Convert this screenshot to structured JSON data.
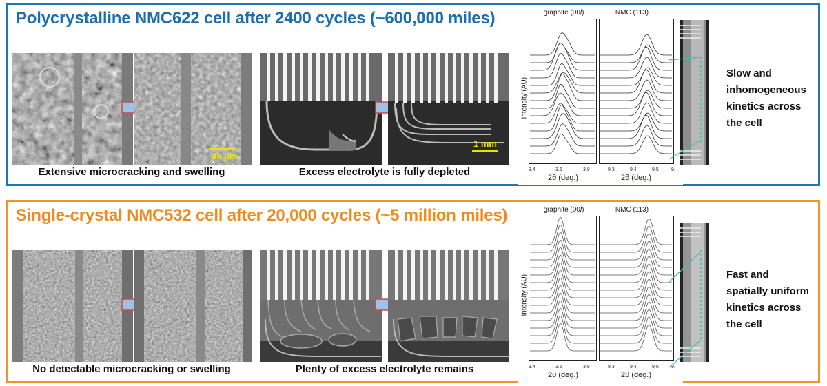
{
  "top": {
    "title": "Polycrystalline NMC622 cell after 2400 cycles (~600,000 miles)",
    "caption_micro": "Extensive microcracking and swelling",
    "caption_electrolyte": "Excess electrolyte is fully depleted",
    "scalebar_micro": "40 μm",
    "scalebar_mm": "1 mm",
    "note": [
      "Slow and",
      "inhomogeneous",
      "kinetics across",
      "the cell"
    ],
    "plot": {
      "title_left": "graphite (00",
      "title_left_italic": "l",
      "title_left_end": ")",
      "title_right": "NMC (113)",
      "ylabel": "Intensity (AU)",
      "xlabel": "2θ (deg.)",
      "ticks_left": [
        "3.4",
        "3.6",
        "3.8"
      ],
      "ticks_right": [
        "9.3",
        "9.4",
        "9.5",
        "9."
      ]
    }
  },
  "bottom": {
    "title": "Single-crystal NMC532 cell after 20,000 cycles (~5 million miles)",
    "caption_micro": "No detectable microcracking or swelling",
    "caption_electrolyte": "Plenty of excess electrolyte remains",
    "note": [
      "Fast and",
      "spatially uniform",
      "kinetics across",
      "the cell"
    ],
    "plot": {
      "title_left": "graphite (00",
      "title_left_italic": "l",
      "title_left_end": ")",
      "title_right": "NMC (113)",
      "ylabel": "Intensity (AU)",
      "xlabel": "2θ (deg.)",
      "ticks_left": [
        "3.4",
        "3.6",
        "3.8"
      ],
      "ticks_right": [
        "9.3",
        "9.4",
        "9.5",
        "9."
      ]
    }
  },
  "colors": {
    "top_border": "#1f78b4",
    "bottom_border": "#f0932b",
    "arrow_fill": "#9cc3e6",
    "arrow_stroke": "#c0504d",
    "scalebar": "#f0e000",
    "connector": "#3cc3a0"
  }
}
